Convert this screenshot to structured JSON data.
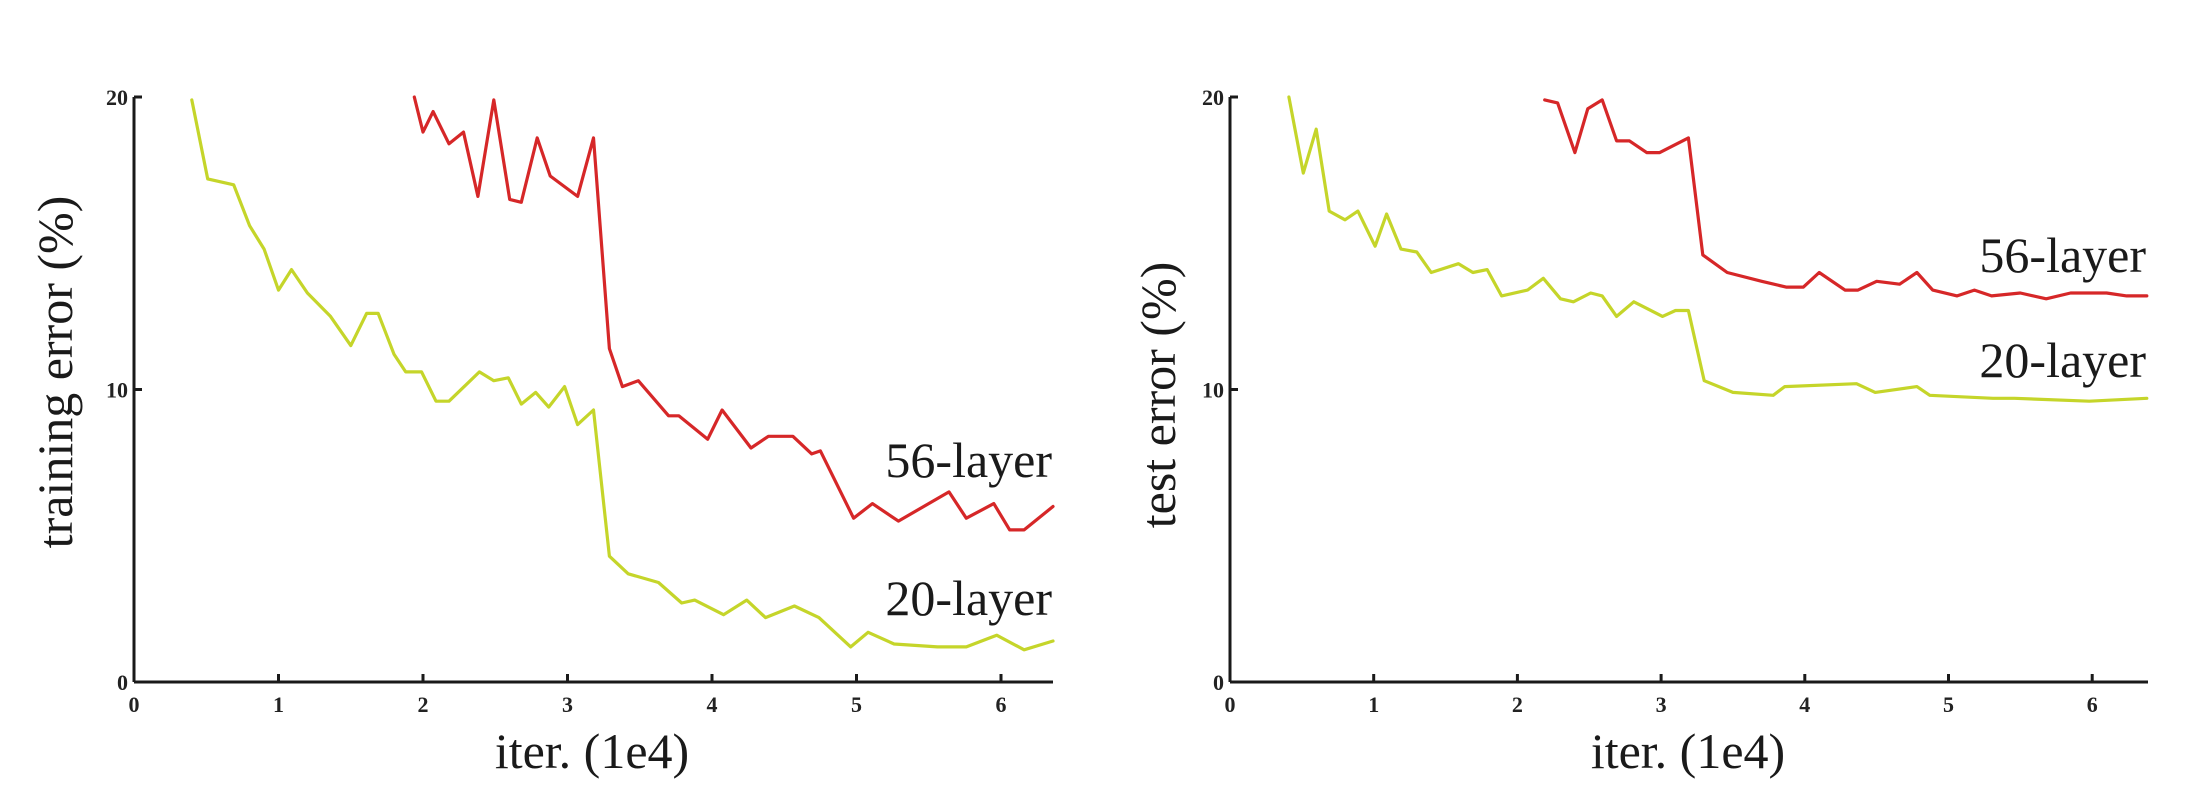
{
  "chart_data": [
    {
      "type": "line",
      "title": "",
      "xlabel": "iter. (1e4)",
      "ylabel": "training error (%)",
      "xlim": [
        0,
        6.4
      ],
      "ylim": [
        0,
        20
      ],
      "xticks": [
        0,
        1,
        2,
        3,
        4,
        5,
        6
      ],
      "yticks": [
        0,
        10,
        20
      ],
      "grid": false,
      "legend_position": "inline-right",
      "series": [
        {
          "name": "56-layer",
          "color": "#d62728",
          "x": [
            1.94,
            2.0,
            2.07,
            2.18,
            2.28,
            2.38,
            2.49,
            2.6,
            2.68,
            2.79,
            2.88,
            3.07,
            3.18,
            3.29,
            3.38,
            3.49,
            3.7,
            3.77,
            3.97,
            4.07,
            4.27,
            4.39,
            4.56,
            4.69,
            4.75,
            4.98,
            5.11,
            5.29,
            5.64,
            5.76,
            5.95,
            6.06,
            6.16,
            6.36
          ],
          "y": [
            20.0,
            18.8,
            19.5,
            18.4,
            18.8,
            16.6,
            19.9,
            16.5,
            16.4,
            18.6,
            17.3,
            16.6,
            18.6,
            11.4,
            10.1,
            10.3,
            9.1,
            9.1,
            8.3,
            9.3,
            8.0,
            8.4,
            8.4,
            7.8,
            7.9,
            5.6,
            6.1,
            5.5,
            6.5,
            5.6,
            6.1,
            5.2,
            5.2,
            6.0
          ]
        },
        {
          "name": "20-layer",
          "color": "#c5d52a",
          "x": [
            0.4,
            0.51,
            0.69,
            0.8,
            0.9,
            1.0,
            1.09,
            1.2,
            1.36,
            1.5,
            1.61,
            1.69,
            1.8,
            1.88,
            1.99,
            2.09,
            2.18,
            2.39,
            2.49,
            2.59,
            2.68,
            2.78,
            2.87,
            2.98,
            3.07,
            3.18,
            3.29,
            3.42,
            3.63,
            3.79,
            3.88,
            4.08,
            4.24,
            4.37,
            4.57,
            4.74,
            4.96,
            5.08,
            5.26,
            5.56,
            5.76,
            5.97,
            6.16,
            6.36
          ],
          "y": [
            19.9,
            17.2,
            17.0,
            15.6,
            14.8,
            13.4,
            14.1,
            13.3,
            12.5,
            11.5,
            12.6,
            12.6,
            11.2,
            10.6,
            10.6,
            9.6,
            9.6,
            10.6,
            10.3,
            10.4,
            9.5,
            9.9,
            9.4,
            10.1,
            8.8,
            9.3,
            4.3,
            3.7,
            3.4,
            2.7,
            2.8,
            2.3,
            2.8,
            2.2,
            2.6,
            2.2,
            1.2,
            1.7,
            1.3,
            1.2,
            1.2,
            1.6,
            1.1,
            1.4
          ]
        }
      ]
    },
    {
      "type": "line",
      "title": "",
      "xlabel": "iter. (1e4)",
      "ylabel": "test error (%)",
      "xlim": [
        0,
        6.4
      ],
      "ylim": [
        0,
        20
      ],
      "xticks": [
        0,
        1,
        2,
        3,
        4,
        5,
        6
      ],
      "yticks": [
        0,
        10,
        20
      ],
      "grid": false,
      "legend_position": "inline-right",
      "series": [
        {
          "name": "56-layer",
          "color": "#d62728",
          "x": [
            2.19,
            2.28,
            2.4,
            2.49,
            2.59,
            2.69,
            2.78,
            2.9,
            2.99,
            3.19,
            3.29,
            3.46,
            3.7,
            3.87,
            3.99,
            4.1,
            4.28,
            4.37,
            4.5,
            4.66,
            4.78,
            4.89,
            5.06,
            5.18,
            5.3,
            5.5,
            5.68,
            5.85,
            6.1,
            6.24,
            6.38
          ],
          "y": [
            19.9,
            19.8,
            18.1,
            19.6,
            19.9,
            18.5,
            18.5,
            18.1,
            18.1,
            18.6,
            14.6,
            14.0,
            13.7,
            13.5,
            13.5,
            14.0,
            13.4,
            13.4,
            13.7,
            13.6,
            14.0,
            13.4,
            13.2,
            13.4,
            13.2,
            13.3,
            13.1,
            13.3,
            13.3,
            13.2,
            13.2
          ]
        },
        {
          "name": "20-layer",
          "color": "#c5d52a",
          "x": [
            0.41,
            0.51,
            0.6,
            0.69,
            0.8,
            0.89,
            1.01,
            1.09,
            1.19,
            1.3,
            1.4,
            1.59,
            1.69,
            1.79,
            1.89,
            2.07,
            2.18,
            2.3,
            2.39,
            2.51,
            2.59,
            2.69,
            2.81,
            3.01,
            3.1,
            3.19,
            3.3,
            3.5,
            3.78,
            3.86,
            4.36,
            4.49,
            4.78,
            4.87,
            5.31,
            5.46,
            5.98,
            6.38
          ],
          "y": [
            20.0,
            17.4,
            18.9,
            16.1,
            15.8,
            16.1,
            14.9,
            16.0,
            14.8,
            14.7,
            14.0,
            14.3,
            14.0,
            14.1,
            13.2,
            13.4,
            13.8,
            13.1,
            13.0,
            13.3,
            13.2,
            12.5,
            13.0,
            12.5,
            12.7,
            12.7,
            10.3,
            9.9,
            9.8,
            10.1,
            10.2,
            9.9,
            10.1,
            9.8,
            9.7,
            9.7,
            9.6,
            9.7
          ]
        }
      ]
    }
  ],
  "panels": [
    {
      "ylabel": "training error (%)",
      "xlabel": "iter. (1e4)",
      "label_56": "56-layer",
      "label_20": "20-layer",
      "ytick_labels": [
        "0",
        "10",
        "20"
      ],
      "xtick_labels": [
        "0",
        "1",
        "2",
        "3",
        "4",
        "5",
        "6"
      ]
    },
    {
      "ylabel": "test error (%)",
      "xlabel": "iter. (1e4)",
      "label_56": "56-layer",
      "label_20": "20-layer",
      "ytick_labels": [
        "0",
        "10",
        "20"
      ],
      "xtick_labels": [
        "0",
        "1",
        "2",
        "3",
        "4",
        "5",
        "6"
      ]
    }
  ],
  "colors": {
    "series_56": "#d62728",
    "series_20": "#c5d52a",
    "axis": "#1a1a1a",
    "text": "#1a1a1a"
  }
}
